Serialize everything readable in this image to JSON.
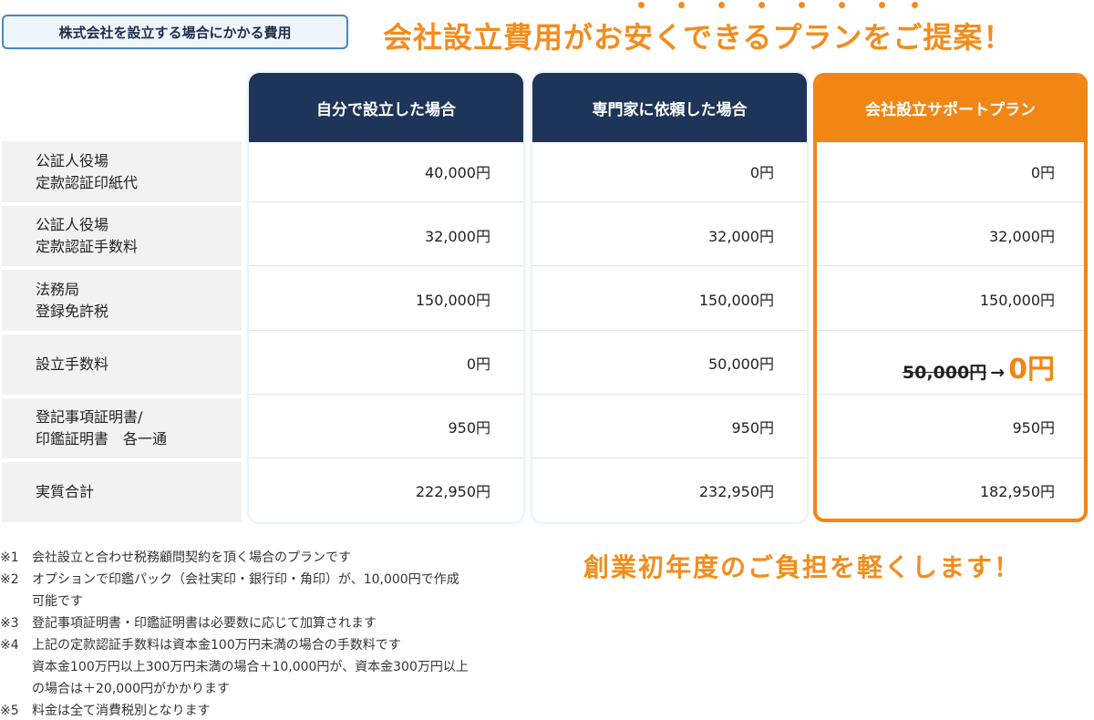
{
  "label": "株式会社を設立する場合にかかる費用",
  "headline": "会社設立費用がお安くできるプランをご提案！",
  "columns": [
    "自分で設立した場合",
    "専門家に依頼した場合",
    "会社設立サポートプラン"
  ],
  "rows": [
    {
      "label": "公証人役場\n定款認証印紙代",
      "values": [
        "40,000円",
        "0円",
        "0円"
      ]
    },
    {
      "label": "公証人役場\n定款認証手数料",
      "values": [
        "32,000円",
        "32,000円",
        "32,000円"
      ]
    },
    {
      "label": "法務局\n登録免許税",
      "values": [
        "150,000円",
        "150,000円",
        "150,000円"
      ]
    },
    {
      "label": "設立手数料",
      "values": [
        "0円",
        "50,000円",
        ""
      ]
    },
    {
      "label": "登記事項証明書/\n印鑑証明書　各一通",
      "values": [
        "950円",
        "950円",
        "950円"
      ]
    },
    {
      "label": "実質合計",
      "values": [
        "222,950円",
        "232,950円",
        "182,950円"
      ]
    }
  ],
  "featured_fee": {
    "old": "50,000円",
    "arrow": "→",
    "new": "0円"
  },
  "notes": [
    {
      "mark": "※1",
      "text": "会社設立と合わせ税務顧問契約を頂く場合のプランです"
    },
    {
      "mark": "※2",
      "text": "オプションで印鑑パック（会社実印・銀行印・角印）が、10,000円で作成\n可能です"
    },
    {
      "mark": "※3",
      "text": "登記事項証明書・印鑑証明書は必要数に応じて加算されます"
    },
    {
      "mark": "※4",
      "text": "上記の定款認証手数料は資本金100万円未満の場合の手数料です\n資本金100万円以上300万円未満の場合＋10,000円が、資本金300万円以上\nの場合は＋20,000円がかかります"
    },
    {
      "mark": "※5",
      "text": "料金は全て消費税別となります"
    }
  ],
  "bottom_headline": "創業初年度のご負担を軽くします！",
  "colors": {
    "navy": "#1e3459",
    "orange": "#f28614"
  }
}
